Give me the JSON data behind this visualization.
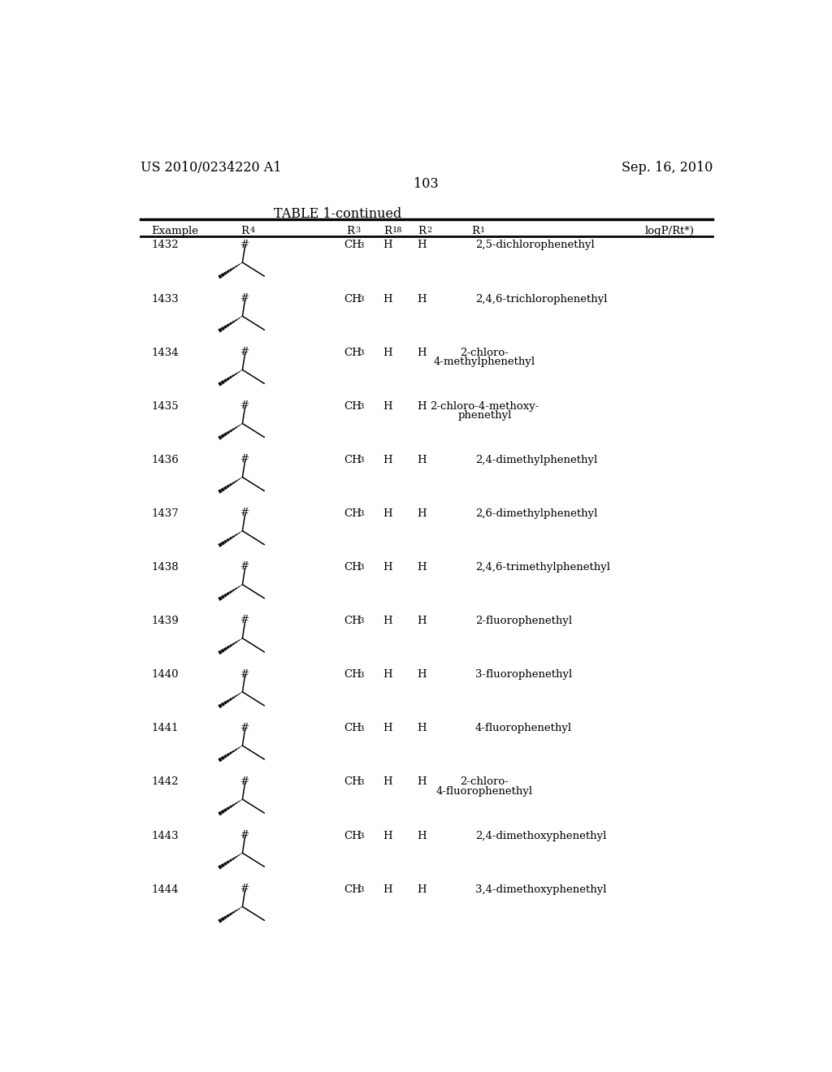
{
  "patent_number": "US 2010/0234220 A1",
  "date": "Sep. 16, 2010",
  "page_number": "103",
  "table_title": "TABLE 1-continued",
  "rows": [
    {
      "example": "1432",
      "r1_lines": [
        "2,5-dichlorophenethyl"
      ]
    },
    {
      "example": "1433",
      "r1_lines": [
        "2,4,6-trichlorophenethyl"
      ]
    },
    {
      "example": "1434",
      "r1_lines": [
        "2-chloro-",
        "4-methylphenethyl"
      ]
    },
    {
      "example": "1435",
      "r1_lines": [
        "2-chloro-4-methoxy-",
        "phenethyl"
      ]
    },
    {
      "example": "1436",
      "r1_lines": [
        "2,4-dimethylphenethyl"
      ]
    },
    {
      "example": "1437",
      "r1_lines": [
        "2,6-dimethylphenethyl"
      ]
    },
    {
      "example": "1438",
      "r1_lines": [
        "2,4,6-trimethylphenethyl"
      ]
    },
    {
      "example": "1439",
      "r1_lines": [
        "2-fluorophenethyl"
      ]
    },
    {
      "example": "1440",
      "r1_lines": [
        "3-fluorophenethyl"
      ]
    },
    {
      "example": "1441",
      "r1_lines": [
        "4-fluorophenethyl"
      ]
    },
    {
      "example": "1442",
      "r1_lines": [
        "2-chloro-",
        "4-fluorophenethyl"
      ]
    },
    {
      "example": "1443",
      "r1_lines": [
        "2,4-dimethoxyphenethyl"
      ]
    },
    {
      "example": "1444",
      "r1_lines": [
        "3,4-dimethoxyphenethyl"
      ]
    }
  ],
  "background_color": "#ffffff",
  "text_color": "#000000"
}
